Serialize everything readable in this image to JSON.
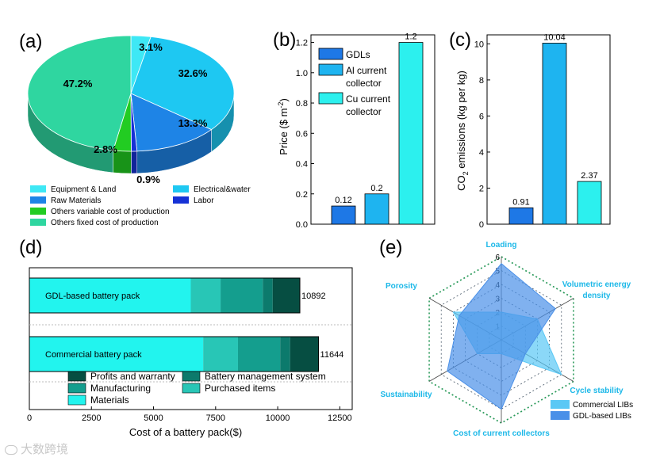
{
  "chart_data": [
    {
      "panel": "(a)",
      "type": "pie",
      "labels": [
        "Equipment & Land",
        "Electrical&water",
        "Raw Materials",
        "Labor",
        "Others variable cost of production",
        "Others fixed cost of production"
      ],
      "values": [
        3.1,
        32.6,
        13.3,
        0.9,
        2.8,
        47.2
      ],
      "value_labels": [
        "3.1%",
        "32.6%",
        "13.3%",
        "0.9%",
        "2.8%",
        "47.2%"
      ],
      "colors": [
        "#3ee8f5",
        "#1ec8f2",
        "#1e84e6",
        "#1632d6",
        "#22cc22",
        "#2fd6a0"
      ]
    },
    {
      "panel": "(b)",
      "type": "bar",
      "categories": [
        "GDLs",
        "Al current collector",
        "Cu current collector"
      ],
      "legend": [
        "GDLs",
        "Al current",
        "collector",
        "Cu current",
        "collector"
      ],
      "values": [
        0.12,
        0.2,
        1.2
      ],
      "value_labels": [
        "0.12",
        "0.2",
        "1.2"
      ],
      "colors": [
        "#1e78e6",
        "#1eb4f0",
        "#2cf0ee"
      ],
      "ylabel": "Price ($ m",
      "ylabel_sup": "-2",
      "ylabel_end": ")",
      "ylim": [
        0,
        1.25
      ],
      "yticks": [
        "0.0",
        "0.2",
        "0.4",
        "0.6",
        "0.8",
        "1.0",
        "1.2"
      ]
    },
    {
      "panel": "(c)",
      "type": "bar",
      "categories": [
        "GDLs",
        "Al current collector",
        "Cu current collector"
      ],
      "values": [
        0.91,
        10.04,
        2.37
      ],
      "value_labels": [
        "0.91",
        "10.04",
        "2.37"
      ],
      "colors": [
        "#1e78e6",
        "#1eb4f0",
        "#2cf0ee"
      ],
      "ylabel": "CO",
      "ylabel_sub": "2",
      "ylabel_end": " emissions (kg per kg)",
      "ylim": [
        0,
        10.5
      ],
      "yticks": [
        "0",
        "2",
        "4",
        "6",
        "8",
        "10"
      ]
    },
    {
      "panel": "(d)",
      "type": "bar",
      "orientation": "horizontal-stacked",
      "categories": [
        "GDL-based battery pack",
        "Commercial battery pack"
      ],
      "series": [
        {
          "name": "Materials",
          "values": [
            6500,
            7000
          ],
          "color": "#22f4ee"
        },
        {
          "name": "Purchased items",
          "values": [
            1200,
            1400
          ],
          "color": "#28c6b6"
        },
        {
          "name": "Manufacturing",
          "values": [
            1700,
            1700
          ],
          "color": "#149e8e"
        },
        {
          "name": "Battery management system",
          "values": [
            400,
            400
          ],
          "color": "#0c7a6c"
        },
        {
          "name": "Profits and warranty",
          "values": [
            1092,
            1144
          ],
          "color": "#064e42"
        }
      ],
      "totals": [
        "10892",
        "11644"
      ],
      "xlabel": "Cost of a battery pack($)",
      "xlim": [
        0,
        13000
      ],
      "xticks": [
        "0",
        "2500",
        "5000",
        "7500",
        "10000",
        "12500"
      ]
    },
    {
      "panel": "(e)",
      "type": "radar",
      "axes": [
        "Loading",
        "Volumetric energy density",
        "Cycle stability",
        "Cost of current collectors",
        "Sustainability",
        "Porosity"
      ],
      "axis_labels": [
        "Loading",
        "Volumetric energy",
        "density",
        "Cycle stability",
        "Cost of current collectors",
        "Sustainability",
        "Porosity"
      ],
      "rings": [
        "1",
        "2",
        "3",
        "4",
        "5",
        "6"
      ],
      "rmax": 6,
      "series": [
        {
          "name": "Commercial LIBs",
          "values": [
            2,
            3,
            5,
            1,
            2,
            4
          ],
          "color": "#5ac8f5"
        },
        {
          "name": "GDL-based LIBs",
          "values": [
            5.5,
            4.5,
            2,
            5,
            4.5,
            3.5
          ],
          "color": "#4a90e8"
        }
      ]
    }
  ],
  "watermark": "大数跨境"
}
